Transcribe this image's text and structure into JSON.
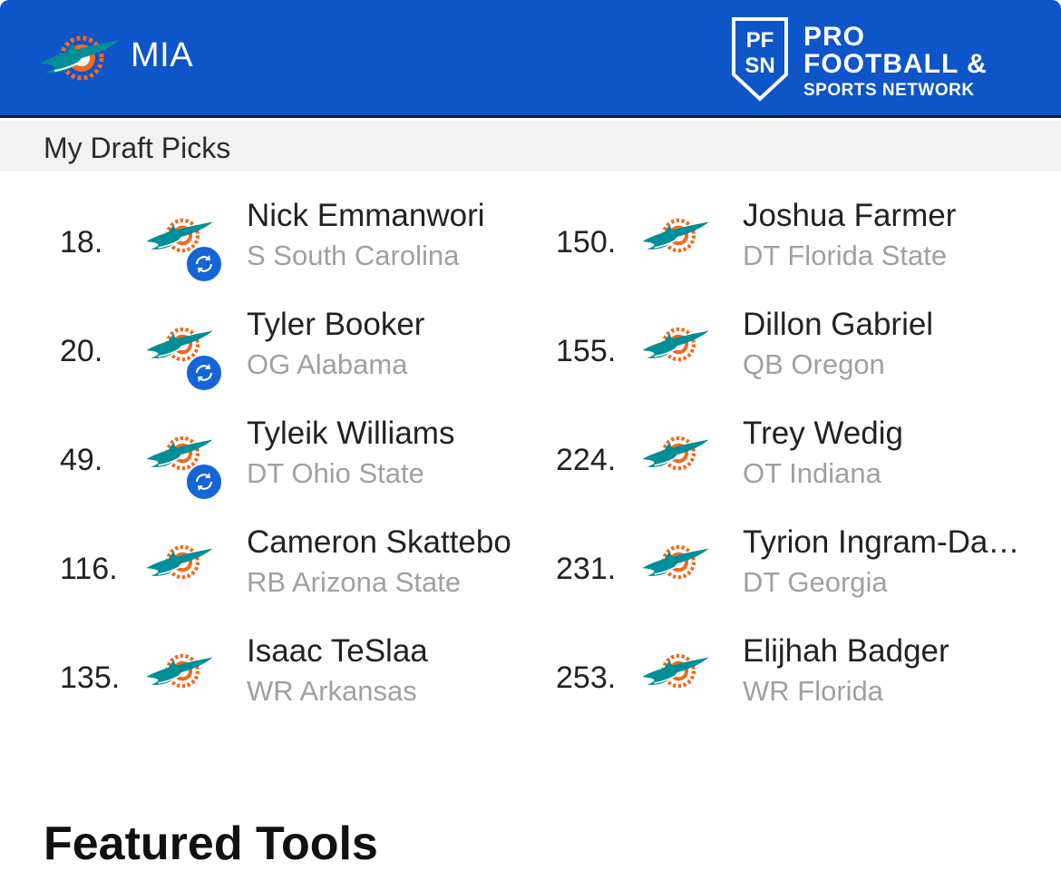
{
  "header": {
    "team_abbr": "MIA",
    "brand_line1": "PRO",
    "brand_line2": "FOOTBALL &",
    "brand_line3": "SPORTS NETWORK",
    "brand_shield_text": "PFSN",
    "brand_color": "#0d55c9"
  },
  "section": {
    "title": "My Draft Picks"
  },
  "picks_left": [
    {
      "number": "18.",
      "name": "Nick Emmanwori",
      "info": "S South Carolina",
      "traded": true
    },
    {
      "number": "20.",
      "name": "Tyler Booker",
      "info": "OG Alabama",
      "traded": true
    },
    {
      "number": "49.",
      "name": "Tyleik Williams",
      "info": "DT Ohio State",
      "traded": true
    },
    {
      "number": "116.",
      "name": "Cameron Skattebo",
      "info": "RB Arizona State",
      "traded": false
    },
    {
      "number": "135.",
      "name": "Isaac TeSlaa",
      "info": "WR Arkansas",
      "traded": false
    }
  ],
  "picks_right": [
    {
      "number": "150.",
      "name": "Joshua Farmer",
      "info": "DT Florida State",
      "traded": false
    },
    {
      "number": "155.",
      "name": "Dillon Gabriel",
      "info": "QB Oregon",
      "traded": false
    },
    {
      "number": "224.",
      "name": "Trey Wedig",
      "info": "OT Indiana",
      "traded": false
    },
    {
      "number": "231.",
      "name": "Tyrion Ingram-Da…",
      "info": "DT Georgia",
      "traded": false
    },
    {
      "number": "253.",
      "name": "Elijhah Badger",
      "info": "WR Florida",
      "traded": false
    }
  ],
  "featured": {
    "title": "Featured Tools"
  }
}
